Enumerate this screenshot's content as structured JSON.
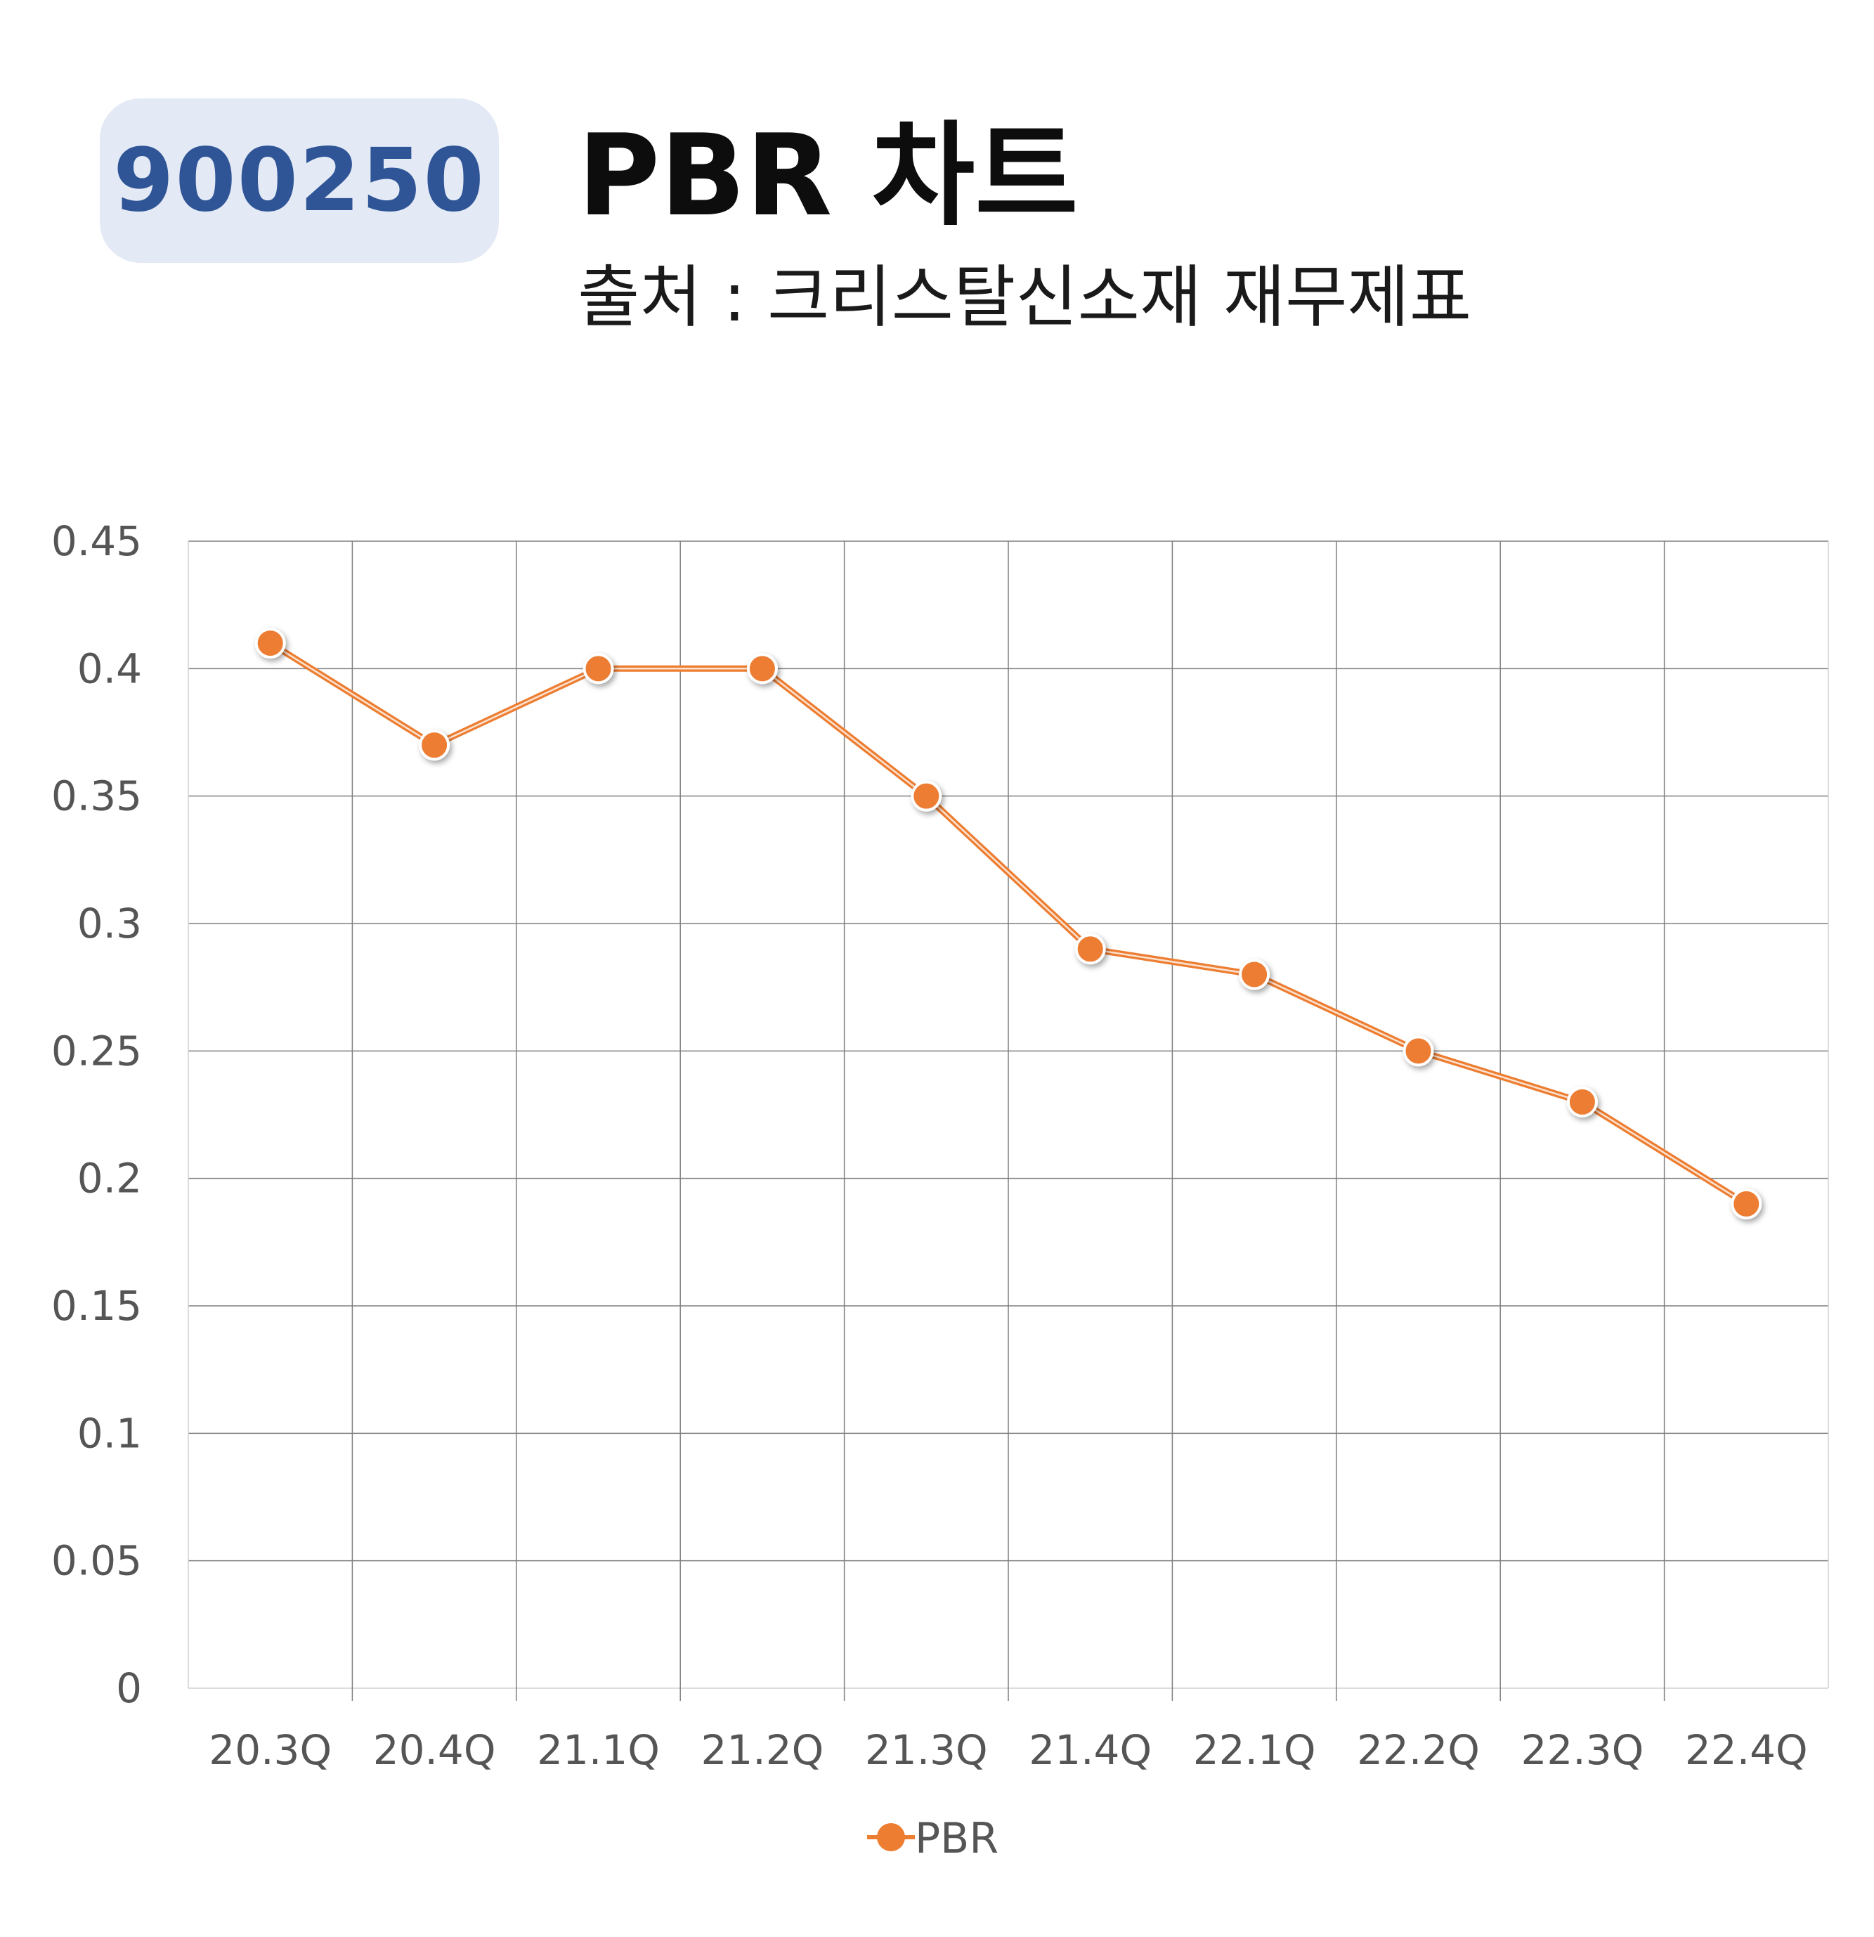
{
  "header": {
    "code": "900250",
    "title": "PBR 차트",
    "subtitle": "출처 : 크리스탈신소재 재무제표"
  },
  "colors": {
    "badge_bg": "#e3e9f5",
    "badge_text": "#2f5597",
    "series": "#ed7d31",
    "grid": "#7f7f7f"
  },
  "chart_data": {
    "type": "line",
    "categories": [
      "20.3Q",
      "20.4Q",
      "21.1Q",
      "21.2Q",
      "21.3Q",
      "21.4Q",
      "22.1Q",
      "22.2Q",
      "22.3Q",
      "22.4Q"
    ],
    "series": [
      {
        "name": "PBR",
        "values": [
          0.41,
          0.37,
          0.4,
          0.4,
          0.35,
          0.29,
          0.28,
          0.25,
          0.23,
          0.19
        ]
      }
    ],
    "y_ticks": [
      "0",
      "0.05",
      "0.1",
      "0.15",
      "0.2",
      "0.25",
      "0.3",
      "0.35",
      "0.4",
      "0.45"
    ],
    "ylim": [
      0,
      0.45
    ],
    "grid": true,
    "legend_position": "bottom",
    "title": "",
    "xlabel": "",
    "ylabel": ""
  }
}
